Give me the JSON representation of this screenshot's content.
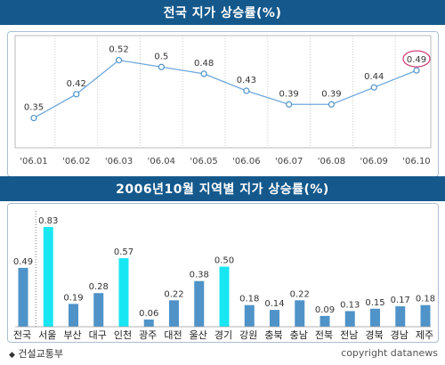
{
  "chart_data": [
    {
      "type": "line",
      "title": "전국 지가 상승률(%)",
      "categories": [
        "'06.01",
        "'06.02",
        "'06.03",
        "'06.04",
        "'06.05",
        "'06.06",
        "'06.07",
        "'06.08",
        "'06.09",
        "'06.10"
      ],
      "values": [
        0.35,
        0.42,
        0.52,
        0.5,
        0.48,
        0.43,
        0.39,
        0.39,
        0.44,
        0.49
      ],
      "value_labels": [
        "0.35",
        "0.42",
        "0.52",
        "0.5",
        "0.48",
        "0.43",
        "0.39",
        "0.39",
        "0.44",
        "0.49"
      ],
      "highlight_index": 9,
      "ylim": [
        0.32,
        0.54
      ],
      "line_color": "#6fa8dc",
      "highlight_color": "#d2447a"
    },
    {
      "type": "bar",
      "title": "2006년10월 지역별 지가 상승률(%)",
      "categories": [
        "전국",
        "서울",
        "부산",
        "대구",
        "인천",
        "광주",
        "대전",
        "울산",
        "경기",
        "강원",
        "충북",
        "충남",
        "전북",
        "전남",
        "경북",
        "경남",
        "제주"
      ],
      "values": [
        0.49,
        0.83,
        0.19,
        0.28,
        0.57,
        0.06,
        0.22,
        0.38,
        0.5,
        0.18,
        0.14,
        0.22,
        0.09,
        0.13,
        0.15,
        0.17,
        0.18
      ],
      "value_labels": [
        "0.49",
        "0.83",
        "0.19",
        "0.28",
        "0.57",
        "0.06",
        "0.22",
        "0.38",
        "0.50",
        "0.18",
        "0.14",
        "0.22",
        "0.09",
        "0.13",
        "0.15",
        "0.17",
        "0.18"
      ],
      "highlight_indices": [
        1,
        4,
        8
      ],
      "ylim": [
        0,
        0.9
      ],
      "bar_color": "#4f93c8",
      "highlight_bar_color": "#18e6f2"
    }
  ],
  "footer": {
    "source": "건설교통부",
    "credit": "copyright datanews",
    "source_icon": "diamond-icon"
  }
}
